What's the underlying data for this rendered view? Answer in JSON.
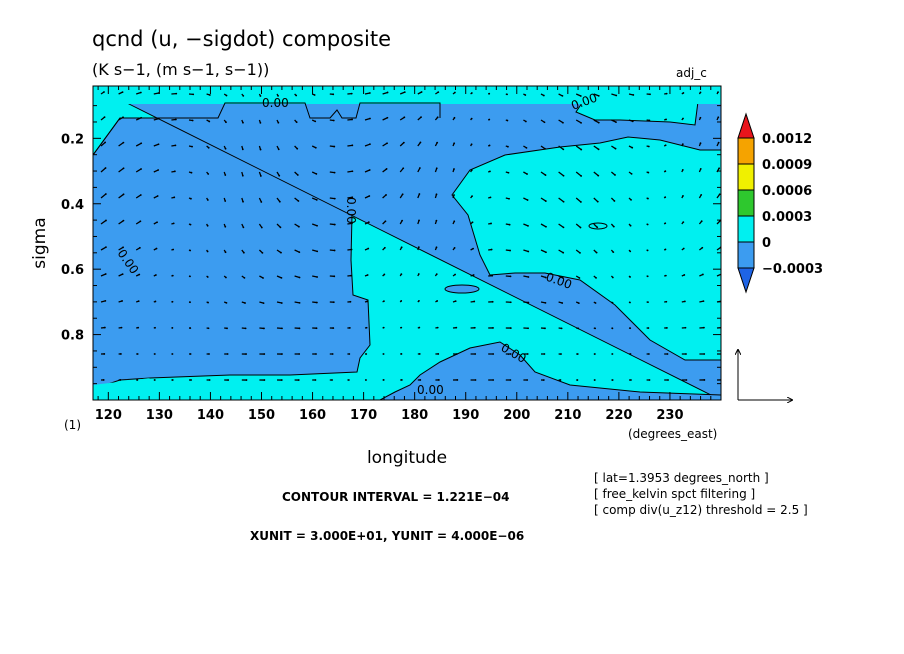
{
  "chart_data": {
    "type": "contour",
    "title": "qcnd (u, −sigdot) composite",
    "subtitle": "(K s−1, (m s−1, s−1))",
    "corner_label": "adj_c",
    "xlabel": "longitude",
    "ylabel": "sigma",
    "x_unit_label": "(degrees_east)",
    "frame_label": "(1)",
    "xlim": [
      117,
      240
    ],
    "ylim": [
      1.0,
      0.04
    ],
    "x_ticks": [
      "120",
      "130",
      "140",
      "150",
      "160",
      "170",
      "180",
      "190",
      "200",
      "210",
      "220",
      "230"
    ],
    "x_tick_values": [
      120,
      130,
      140,
      150,
      160,
      170,
      180,
      190,
      200,
      210,
      220,
      230
    ],
    "y_ticks": [
      "0.2",
      "0.4",
      "0.6",
      "0.8"
    ],
    "y_tick_values": [
      0.2,
      0.4,
      0.6,
      0.8
    ],
    "contour_labels": [
      "0.00",
      "0.00",
      "0.00",
      "0.00",
      "0.00",
      "0.00",
      "0.00"
    ],
    "colorbar": {
      "labels": [
        "0.0012",
        "0.0009",
        "0.0006",
        "0.0003",
        "0",
        "−0.0003"
      ],
      "colors": [
        "#e8141c",
        "#f5a300",
        "#f0f000",
        "#2ec82e",
        "#00f0f0",
        "#3c9cf0",
        "#1e64e6"
      ]
    },
    "fill_colors": {
      "positive": "#00f0f0",
      "negative": "#3c9cf0"
    },
    "contour_interval": "CONTOUR INTERVAL = 1.221E−04",
    "vector_units": "XUNIT = 3.000E+01, YUNIT = 4.000E−06",
    "info_lines": [
      "[ lat=1.3953 degrees_north ]",
      "[ free_kelvin spct filtering ]",
      "[ comp div(u_z12) threshold = 2.5 ]"
    ]
  }
}
